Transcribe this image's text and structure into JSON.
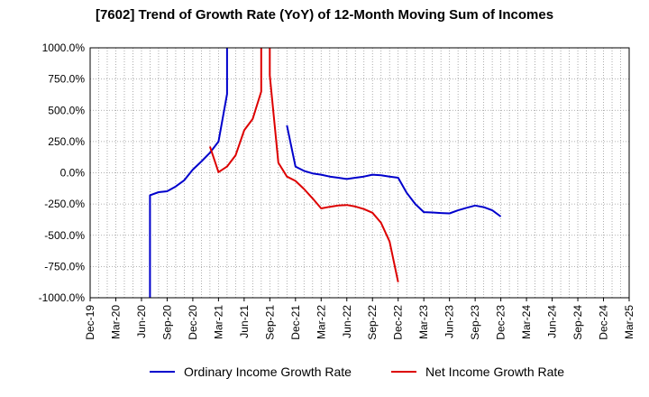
{
  "chart_data": {
    "type": "line",
    "title": "[7602]  Trend of Growth Rate (YoY) of 12-Month Moving Sum of Incomes",
    "ylim": [
      -1000,
      1000
    ],
    "y_ticks": [
      1000,
      750,
      500,
      250,
      0,
      -250,
      -500,
      -750,
      -1000
    ],
    "y_tick_labels": [
      "1000.0%",
      "750.0%",
      "500.0%",
      "250.0%",
      "0.0%",
      "-250.0%",
      "-500.0%",
      "-750.0%",
      "-1000.0%"
    ],
    "x_range": [
      "Dec-19",
      "Mar-25"
    ],
    "x_ticks": [
      "Dec-19",
      "Mar-20",
      "Jun-20",
      "Sep-20",
      "Dec-20",
      "Mar-21",
      "Jun-21",
      "Sep-21",
      "Dec-21",
      "Mar-22",
      "Jun-22",
      "Sep-22",
      "Dec-22",
      "Mar-23",
      "Jun-23",
      "Sep-23",
      "Dec-23",
      "Mar-24",
      "Jun-24",
      "Sep-24",
      "Dec-24",
      "Mar-25"
    ],
    "grid": true,
    "legend_position": "bottom",
    "series": [
      {
        "name": "Ordinary Income Growth Rate",
        "color": "#0000cc",
        "segments": [
          [
            [
              "Jul-20",
              -1000
            ],
            [
              "Jul-20",
              -180
            ],
            [
              "Aug-20",
              -155
            ],
            [
              "Sep-20",
              -148
            ],
            [
              "Oct-20",
              -110
            ],
            [
              "Nov-20",
              -60
            ],
            [
              "Dec-20",
              25
            ],
            [
              "Jan-21",
              90
            ],
            [
              "Feb-21",
              160
            ],
            [
              "Mar-21",
              250
            ],
            [
              "Apr-21",
              630
            ],
            [
              "Apr-21",
              1000
            ]
          ],
          [
            [
              "Nov-21",
              380
            ],
            [
              "Dec-21",
              50
            ],
            [
              "Jan-22",
              15
            ],
            [
              "Feb-22",
              -5
            ],
            [
              "Mar-22",
              -15
            ],
            [
              "Apr-22",
              -30
            ],
            [
              "May-22",
              -40
            ],
            [
              "Jun-22",
              -50
            ],
            [
              "Jul-22",
              -40
            ],
            [
              "Aug-22",
              -30
            ],
            [
              "Sep-22",
              -15
            ],
            [
              "Oct-22",
              -20
            ],
            [
              "Nov-22",
              -30
            ],
            [
              "Dec-22",
              -40
            ],
            [
              "Jan-23",
              -160
            ],
            [
              "Feb-23",
              -250
            ],
            [
              "Mar-23",
              -315
            ],
            [
              "Apr-23",
              -318
            ],
            [
              "May-23",
              -322
            ],
            [
              "Jun-23",
              -325
            ],
            [
              "Jul-23",
              -300
            ],
            [
              "Aug-23",
              -280
            ],
            [
              "Sep-23",
              -262
            ],
            [
              "Oct-23",
              -275
            ],
            [
              "Nov-23",
              -300
            ],
            [
              "Dec-23",
              -350
            ]
          ]
        ]
      },
      {
        "name": "Net Income Growth Rate",
        "color": "#dd0000",
        "segments": [
          [
            [
              "Feb-21",
              210
            ],
            [
              "Mar-21",
              5
            ],
            [
              "Apr-21",
              50
            ],
            [
              "May-21",
              140
            ],
            [
              "Jun-21",
              340
            ],
            [
              "Jul-21",
              430
            ],
            [
              "Aug-21",
              650
            ],
            [
              "Aug-21",
              1000
            ]
          ],
          [
            [
              "Sep-21",
              1000
            ],
            [
              "Sep-21",
              780
            ],
            [
              "Oct-21",
              80
            ],
            [
              "Nov-21",
              -30
            ],
            [
              "Dec-21",
              -65
            ],
            [
              "Jan-22",
              -130
            ],
            [
              "Feb-22",
              -205
            ],
            [
              "Mar-22",
              -285
            ],
            [
              "Apr-22",
              -272
            ],
            [
              "May-22",
              -262
            ],
            [
              "Jun-22",
              -258
            ],
            [
              "Jul-22",
              -270
            ],
            [
              "Aug-22",
              -290
            ],
            [
              "Sep-22",
              -320
            ],
            [
              "Oct-22",
              -400
            ],
            [
              "Nov-22",
              -550
            ],
            [
              "Dec-22",
              -875
            ]
          ]
        ]
      }
    ]
  }
}
